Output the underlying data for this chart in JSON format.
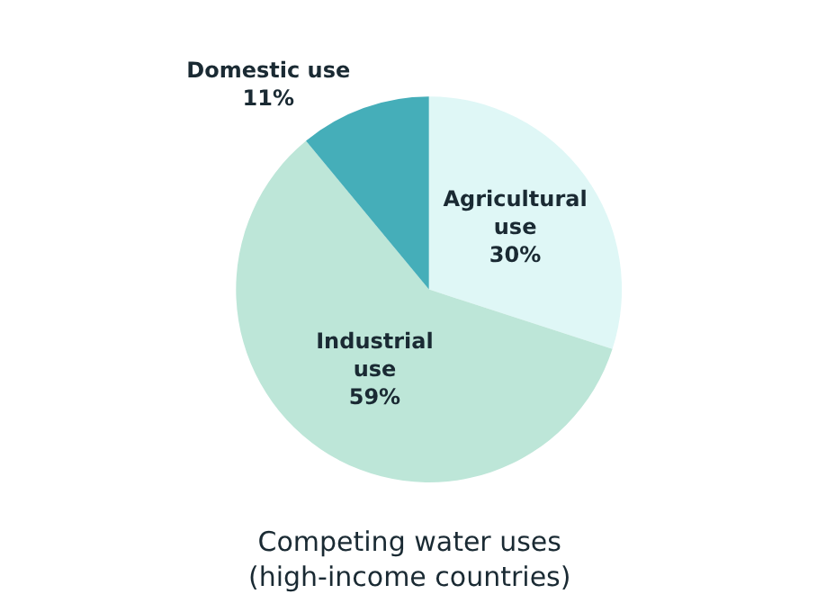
{
  "chart_data": {
    "type": "pie",
    "title": "Competing water uses\n(high-income countries)",
    "categories": [
      "Agricultural use",
      "Industrial use",
      "Domestic use"
    ],
    "values": [
      30,
      59,
      11
    ],
    "colors": [
      "#dff7f6",
      "#bde6d8",
      "#45aeb9"
    ],
    "value_labels": [
      "30%",
      "59%",
      "11%"
    ]
  }
}
